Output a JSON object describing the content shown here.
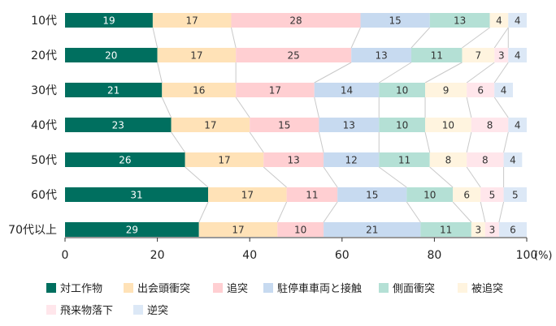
{
  "chart_data": {
    "type": "bar",
    "orientation": "horizontal",
    "stacked": true,
    "categories": [
      "10代",
      "20代",
      "30代",
      "40代",
      "50代",
      "60代",
      "70代以上"
    ],
    "series": [
      {
        "name": "対工作物",
        "color": "#006f5f",
        "values": [
          19,
          20,
          21,
          23,
          26,
          31,
          29
        ]
      },
      {
        "name": "出会頭衝突",
        "color": "#ffe2b7",
        "values": [
          17,
          17,
          16,
          17,
          17,
          17,
          17
        ]
      },
      {
        "name": "追突",
        "color": "#ffcfd2",
        "values": [
          28,
          25,
          17,
          15,
          13,
          11,
          10
        ]
      },
      {
        "name": "駐停車車両と接触",
        "color": "#c7daf0",
        "values": [
          15,
          13,
          14,
          13,
          12,
          15,
          21
        ]
      },
      {
        "name": "側面衝突",
        "color": "#b4e0d5",
        "values": [
          13,
          11,
          10,
          10,
          11,
          10,
          11
        ]
      },
      {
        "name": "被追突",
        "color": "#fff4df",
        "values": [
          4,
          7,
          9,
          10,
          8,
          6,
          3
        ]
      },
      {
        "name": "飛来物落下",
        "color": "#ffe6eb",
        "values": [
          0,
          3,
          6,
          8,
          8,
          5,
          3
        ]
      },
      {
        "name": "逆突",
        "color": "#dce8f6",
        "values": [
          4,
          4,
          4,
          4,
          4,
          5,
          6
        ]
      }
    ],
    "xlim": [
      0,
      100
    ],
    "xticks": [
      "0",
      "20",
      "40",
      "60",
      "80",
      "100"
    ],
    "xunit": "(%)",
    "legend": "bottom",
    "grid": false
  }
}
